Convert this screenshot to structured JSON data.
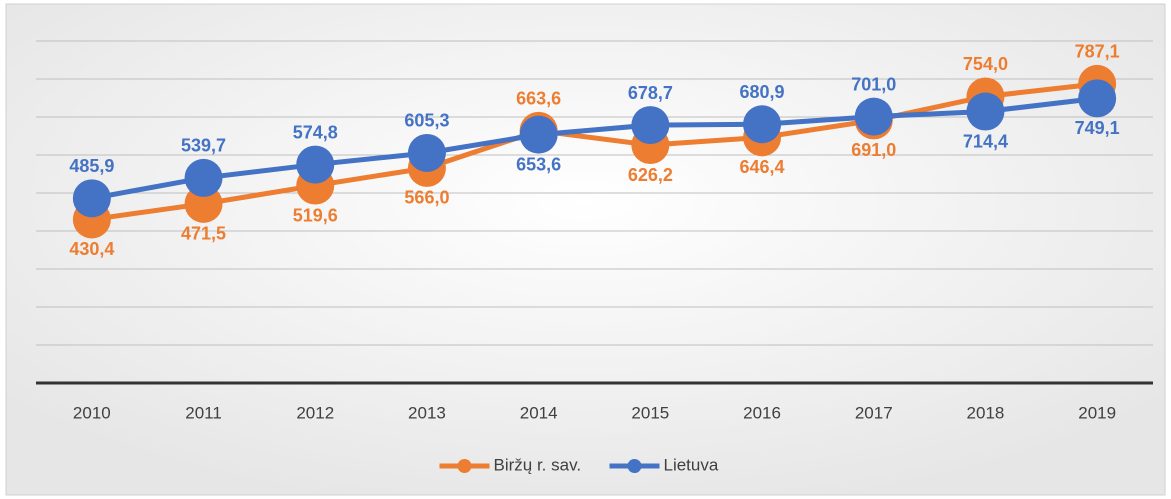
{
  "chart_data": {
    "type": "line",
    "categories": [
      "2010",
      "2011",
      "2012",
      "2013",
      "2014",
      "2015",
      "2016",
      "2017",
      "2018",
      "2019"
    ],
    "series": [
      {
        "name": "Biržų r. sav.",
        "color": "#ed7d31",
        "values": [
          430.4,
          471.5,
          519.6,
          566.0,
          663.6,
          626.2,
          646.4,
          691.0,
          754.0,
          787.1
        ],
        "value_labels": [
          "430,4",
          "471,5",
          "519,6",
          "566,0",
          "663,6",
          "626,2",
          "646,4",
          "691,0",
          "754,0",
          "787,1"
        ]
      },
      {
        "name": "Lietuva",
        "color": "#4472c4",
        "values": [
          485.9,
          539.7,
          574.8,
          605.3,
          653.6,
          678.7,
          680.9,
          701.0,
          714.4,
          749.1
        ],
        "value_labels": [
          "485,9",
          "539,7",
          "574,8",
          "605,3",
          "653,6",
          "678,7",
          "680,9",
          "701,0",
          "714,4",
          "749,1"
        ]
      }
    ],
    "ylim": [
      0,
      900
    ],
    "yticks": [
      0,
      100,
      200,
      300,
      400,
      500,
      600,
      700,
      800,
      900
    ],
    "grid": true,
    "legend": "bottom"
  }
}
